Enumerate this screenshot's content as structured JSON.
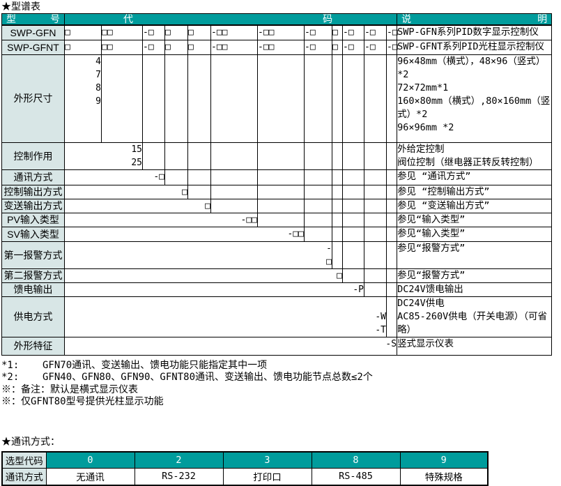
{
  "page_title": "★型谱表",
  "comm_section_title": "★通讯方式：",
  "colors": {
    "header_bg": "#009C9C",
    "label_bg": "#D8E6E6",
    "border": "#000000"
  },
  "model_table": {
    "header": {
      "model_left": "型",
      "model_right": "号",
      "code_left": "代",
      "code_right": "码",
      "desc_left": "说",
      "desc_right": "明"
    },
    "rows": [
      {
        "label": "SWP-GFN",
        "codes": [
          "□",
          "□□",
          "-□",
          "□",
          "□",
          "-□□",
          "-□□",
          "-□",
          "□",
          "-□",
          "-□",
          "-□"
        ],
        "desc": [
          "SWP-GFN系列PID数字显示控制仪"
        ]
      },
      {
        "label": "SWP-GFNT",
        "codes": [
          "□",
          "□□",
          "-□",
          "□",
          "□",
          "-□□",
          "-□□",
          "-□",
          "□",
          "-□",
          "-□",
          "-□"
        ],
        "desc": [
          "SWP-GFNT系列PID光柱显示控制仪"
        ]
      },
      {
        "label": "外形尺寸",
        "col": 1,
        "values": [
          "4",
          "7",
          "8",
          "9"
        ],
        "desc": [
          "96×48mm（横式），48×96（竖式）*2",
          "72×72mm*1",
          "160×80mm（横式）,80×160mm（竖式）*2",
          "96×96mm *2"
        ]
      },
      {
        "label": "控制作用",
        "col": 2,
        "values": [
          "15",
          "25"
        ],
        "desc": [
          "外给定控制",
          "阀位控制（继电器正转反转控制）"
        ]
      },
      {
        "label": "通讯方式",
        "col": 3,
        "values": [
          "-□"
        ],
        "desc": [
          "参见 “通讯方式”"
        ]
      },
      {
        "label": "控制输出方式",
        "col": 4,
        "values": [
          "□"
        ],
        "desc": [
          "参见 “控制输出方式”"
        ]
      },
      {
        "label": "变送输出方式",
        "col": 5,
        "values": [
          "□"
        ],
        "desc": [
          "参见 “变送输出方式”"
        ]
      },
      {
        "label": "PV输入类型",
        "col": 6,
        "values": [
          "-□□"
        ],
        "desc": [
          "参见“输入类型”"
        ]
      },
      {
        "label": "SV输入类型",
        "col": 7,
        "values": [
          "-□□"
        ],
        "desc": [
          "参见“输入类型”"
        ]
      },
      {
        "label": "第一报警方式",
        "col": 8,
        "values": [
          "-",
          "□"
        ],
        "desc": [
          "参见“报警方式”"
        ]
      },
      {
        "label": "第二报警方式",
        "col": 9,
        "values": [
          "□"
        ],
        "desc": [
          "参见“报警方式”"
        ]
      },
      {
        "label": "馈电输出",
        "col": 10,
        "values": [
          "-P"
        ],
        "desc": [
          "DC24V馈电输出"
        ]
      },
      {
        "label": "供电方式",
        "col": 11,
        "values": [
          "",
          "-W",
          "-T"
        ],
        "desc": [
          "DC24V供电",
          "AC85-260V供电（开关电源）（可省略）"
        ]
      },
      {
        "label": "外形特征",
        "col": 12,
        "values": [
          "-S"
        ],
        "desc": [
          "竖式显示仪表"
        ]
      }
    ]
  },
  "footnotes": [
    "*1:    GFN70通讯、变送输出、馈电功能只能指定其中一项",
    "*2:    GFN40、GFN80、GFN90、GFNT80通讯、变送输出、馈电功能节点总数≤2个",
    "※：备注：默认是横式显示仪表",
    "※：仅GFNT80型号提供光柱显示功能"
  ],
  "comm_table": {
    "header_label": "选型代码",
    "codes": [
      "0",
      "2",
      "3",
      "8",
      "9"
    ],
    "row_label": "通讯方式",
    "values": [
      "无通讯",
      "RS-232",
      "打印口",
      "RS-485",
      "特殊规格"
    ]
  }
}
